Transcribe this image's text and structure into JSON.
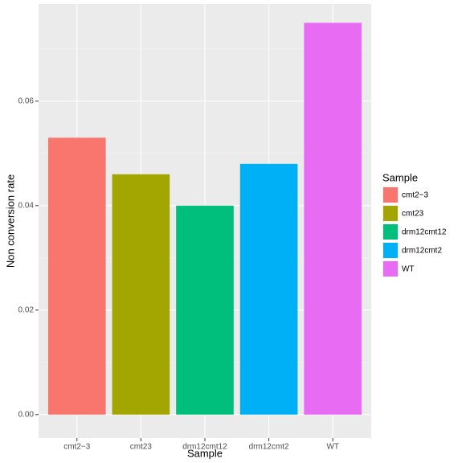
{
  "chart_data": {
    "type": "bar",
    "x_label": "Sample",
    "y_label": "Non conversion rate",
    "legend_title": "Sample",
    "legend": "right",
    "categories": [
      "cmt2−3",
      "cmt23",
      "drm12cmt12",
      "drm12cmt2",
      "WT"
    ],
    "values": [
      0.053,
      0.046,
      0.04,
      0.048,
      0.075
    ],
    "colors": [
      "#F8766D",
      "#A3A500",
      "#00BF7D",
      "#00B0F6",
      "#E76BF3"
    ],
    "ylim": [
      -0.0045,
      0.0786
    ],
    "yticks": [
      {
        "value": 0,
        "label": "0.00"
      },
      0.02,
      0.04,
      0.06
    ],
    "grid": true
  }
}
